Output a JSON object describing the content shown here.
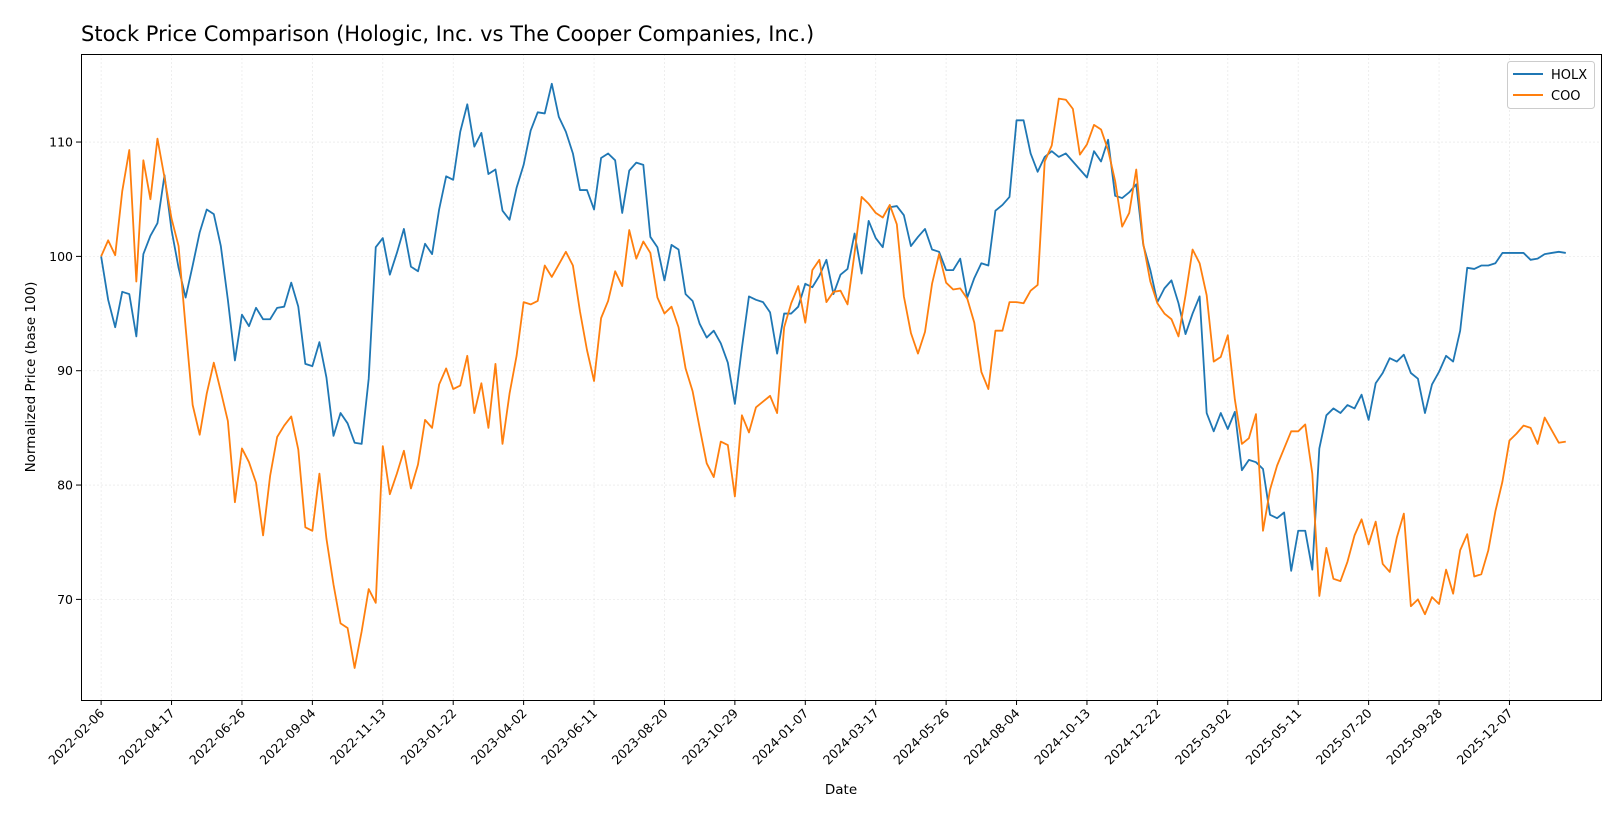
{
  "chart_data": {
    "type": "line",
    "title": "Stock Price Comparison (Hologic, Inc. vs The Cooper Companies, Inc.)",
    "xlabel": "Date",
    "ylabel": "Normalized Price (base 100)",
    "x_start": "2022-02-06",
    "x_step_days": 7,
    "xlim": [
      "2022-01-17",
      "2026-03-08"
    ],
    "ylim": [
      61.2,
      117.7
    ],
    "yticks": [
      70,
      80,
      90,
      100,
      110
    ],
    "xticks": [
      "2022-02-06",
      "2022-04-17",
      "2022-06-26",
      "2022-09-04",
      "2022-11-13",
      "2023-01-22",
      "2023-04-02",
      "2023-06-11",
      "2023-08-20",
      "2023-10-29",
      "2024-01-07",
      "2024-03-17",
      "2024-05-26",
      "2024-08-04",
      "2024-10-13",
      "2024-12-22",
      "2025-03-02",
      "2025-05-11",
      "2025-07-20",
      "2025-09-28",
      "2025-12-07"
    ],
    "grid": true,
    "legend_position": "top-right",
    "series": [
      {
        "name": "HOLX",
        "color": "#1f77b4",
        "values": [
          100.0,
          96.2,
          93.8,
          96.9,
          96.7,
          93.0,
          100.2,
          101.8,
          102.9,
          107.1,
          102.3,
          99.0,
          96.4,
          99.2,
          102.1,
          104.1,
          103.7,
          100.9,
          96.2,
          90.9,
          94.9,
          93.9,
          95.5,
          94.5,
          94.5,
          95.5,
          95.6,
          97.7,
          95.6,
          90.6,
          90.4,
          92.5,
          89.4,
          84.3,
          86.3,
          85.4,
          83.7,
          83.6,
          89.3,
          100.8,
          101.6,
          98.4,
          100.3,
          102.4,
          99.1,
          98.7,
          101.1,
          100.2,
          104.1,
          107.0,
          106.7,
          110.9,
          113.3,
          109.6,
          110.8,
          107.2,
          107.6,
          104.0,
          103.2,
          106.0,
          108.0,
          111.0,
          112.6,
          112.5,
          115.1,
          112.2,
          110.9,
          109.0,
          105.8,
          105.8,
          104.1,
          108.6,
          109.0,
          108.4,
          103.8,
          107.5,
          108.2,
          108.0,
          101.7,
          100.8,
          97.9,
          101.0,
          100.6,
          96.7,
          96.1,
          94.1,
          92.9,
          93.5,
          92.4,
          90.7,
          87.1,
          92.0,
          96.5,
          96.2,
          96.0,
          95.1,
          91.5,
          95.0,
          95.0,
          95.6,
          97.6,
          97.3,
          98.3,
          99.7,
          96.7,
          98.4,
          98.9,
          102.0,
          98.5,
          103.1,
          101.6,
          100.8,
          104.3,
          104.4,
          103.6,
          100.9,
          101.7,
          102.4,
          100.6,
          100.4,
          98.8,
          98.8,
          99.8,
          96.4,
          98.1,
          99.4,
          99.2,
          104.0,
          104.5,
          105.2,
          111.9,
          111.9,
          109.0,
          107.4,
          108.7,
          109.2,
          108.7,
          109.0,
          108.3,
          107.6,
          106.9,
          109.2,
          108.3,
          110.2,
          105.3,
          105.1,
          105.6,
          106.3,
          101.0,
          98.8,
          96.0,
          97.2,
          97.9,
          95.9,
          93.2,
          95.0,
          96.5,
          86.3,
          84.7,
          86.3,
          84.9,
          86.4,
          81.3,
          82.2,
          82.0,
          81.4,
          77.4,
          77.1,
          77.6,
          72.5,
          76.0,
          76.0,
          72.6,
          83.2,
          86.1,
          86.7,
          86.3,
          87.0,
          86.7,
          87.9,
          85.7,
          88.9,
          89.8,
          91.1,
          90.8,
          91.4,
          89.8,
          89.3,
          86.3,
          88.8,
          89.9,
          91.3,
          90.8,
          93.5,
          99.0,
          98.9,
          99.2,
          99.2,
          99.4,
          100.3,
          100.3,
          100.3,
          100.3,
          99.7,
          99.8,
          100.2,
          100.3,
          100.4,
          100.3
        ]
      },
      {
        "name": "COO",
        "color": "#ff7f0e",
        "values": [
          100.0,
          101.4,
          100.1,
          105.7,
          109.3,
          97.8,
          108.4,
          105.0,
          110.3,
          106.9,
          103.3,
          100.9,
          93.8,
          87.0,
          84.4,
          88.0,
          90.7,
          88.2,
          85.6,
          78.5,
          83.2,
          82.0,
          80.2,
          75.6,
          80.8,
          84.2,
          85.2,
          86.0,
          83.1,
          76.3,
          76.0,
          81.0,
          75.3,
          71.3,
          67.9,
          67.5,
          64.0,
          67.2,
          70.9,
          69.7,
          83.4,
          79.2,
          81.0,
          83.0,
          79.7,
          81.8,
          85.7,
          85.0,
          88.8,
          90.2,
          88.4,
          88.7,
          91.3,
          86.3,
          88.9,
          85.0,
          90.6,
          83.6,
          88.0,
          91.3,
          96.0,
          95.8,
          96.1,
          99.2,
          98.2,
          99.3,
          100.4,
          99.2,
          95.2,
          91.8,
          89.1,
          94.6,
          96.1,
          98.7,
          97.4,
          102.3,
          99.8,
          101.3,
          100.3,
          96.4,
          95.0,
          95.6,
          93.8,
          90.2,
          88.2,
          85.0,
          81.9,
          80.7,
          83.8,
          83.5,
          79.0,
          86.1,
          84.6,
          86.8,
          87.3,
          87.8,
          86.3,
          93.8,
          95.9,
          97.4,
          94.2,
          98.8,
          99.7,
          96.0,
          96.9,
          97.0,
          95.8,
          100.3,
          105.2,
          104.6,
          103.8,
          103.4,
          104.5,
          102.8,
          96.5,
          93.3,
          91.5,
          93.4,
          97.6,
          100.2,
          97.7,
          97.1,
          97.2,
          96.3,
          94.2,
          89.9,
          88.4,
          93.5,
          93.5,
          96.0,
          96.0,
          95.9,
          97.0,
          97.5,
          108.3,
          109.7,
          113.8,
          113.7,
          112.9,
          108.9,
          109.8,
          111.5,
          111.1,
          109.3,
          106.6,
          102.6,
          103.8,
          107.6,
          101.1,
          97.8,
          95.9,
          95.0,
          94.5,
          93.0,
          96.6,
          100.6,
          99.4,
          96.6,
          90.8,
          91.2,
          93.1,
          87.5,
          83.6,
          84.1,
          86.2,
          76.0,
          79.6,
          81.7,
          83.2,
          84.7,
          84.7,
          85.3,
          81.0,
          70.3,
          74.5,
          71.8,
          71.6,
          73.3,
          75.6,
          77.0,
          74.8,
          76.8,
          73.1,
          72.4,
          75.4,
          77.5,
          69.4,
          70.0,
          68.7,
          70.2,
          69.6,
          72.6,
          70.5,
          74.3,
          75.7,
          72.0,
          72.2,
          74.3,
          77.7,
          80.3,
          83.9,
          84.5,
          85.2,
          85.0,
          83.6,
          85.9,
          84.8,
          83.7,
          83.8
        ]
      }
    ]
  }
}
